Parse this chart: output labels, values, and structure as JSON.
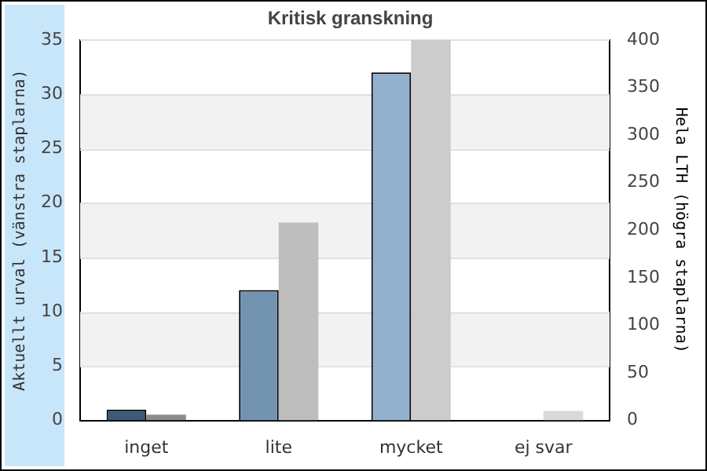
{
  "chart_data": {
    "type": "bar",
    "title": "Kritisk granskning",
    "categories": [
      "inget",
      "lite",
      "mycket",
      "ej svar"
    ],
    "series": [
      {
        "colors": [
          "#3d5a78",
          "#7394b0",
          "#91b1cc",
          "#91b1cc"
        ],
        "values": [
          1,
          12,
          32,
          0
        ]
      },
      {
        "colors": [
          "#8c8c8c",
          "#bebebe",
          "#cccccc",
          "#d9d9d9"
        ],
        "values": [
          6,
          208,
          400,
          10
        ],
        "axis": "y2"
      }
    ],
    "ylabel": "Aktuellt urval (vänstra staplarna)",
    "y2label": "Hela LTH (högra staplarna)",
    "ylim": [
      0,
      35
    ],
    "yticks": [
      0,
      5,
      10,
      15,
      20,
      25,
      30,
      35
    ],
    "y2lim": [
      0,
      400
    ],
    "y2ticks": [
      0,
      50,
      100,
      150,
      200,
      250,
      300,
      350,
      400
    ],
    "grid": "y",
    "legend": false
  }
}
